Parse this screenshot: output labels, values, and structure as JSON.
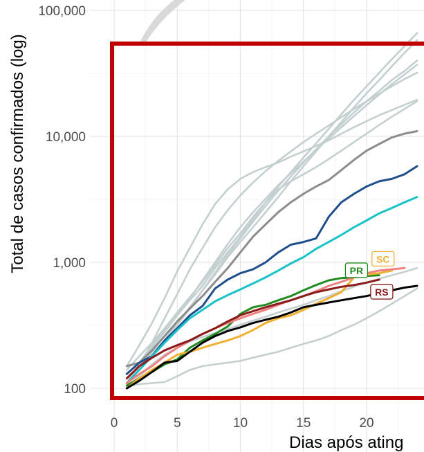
{
  "chart_data": {
    "type": "line",
    "title": "",
    "xlabel": "Dias após ating",
    "ylabel": "Total de casos confirmados (log)",
    "y_scale": "log",
    "xlim": [
      -1,
      24
    ],
    "ylim": [
      80,
      120000
    ],
    "x_ticks": [
      0,
      5,
      10,
      15,
      20
    ],
    "x_tick_labels": [
      "0",
      "5",
      "10",
      "15",
      "20"
    ],
    "y_ticks": [
      100,
      1000,
      10000,
      100000
    ],
    "y_tick_labels": [
      "100",
      "1,000",
      "10,000",
      "100,000"
    ],
    "grid": true,
    "legend": "none",
    "highlight_box_color": "#c00000",
    "series": [
      {
        "color": "#c4cfcf",
        "x": [
          1,
          2,
          3,
          4,
          5,
          6,
          7,
          8,
          9,
          10,
          11,
          12,
          13,
          14,
          15,
          16,
          17,
          18,
          19,
          20,
          21,
          22,
          23,
          24
        ],
        "values": [
          150,
          220,
          330,
          520,
          850,
          1300,
          2000,
          2900,
          3800,
          4600,
          5200,
          5700,
          6200,
          6900,
          7600,
          8400,
          9300,
          10500,
          11800,
          13200,
          14700,
          16200,
          17800,
          19500
        ]
      },
      {
        "color": "#c4cfcf",
        "x": [
          1,
          2,
          3,
          4,
          5,
          6,
          7,
          8,
          9,
          10,
          11,
          12,
          13,
          14,
          15,
          16,
          17,
          18,
          19,
          20,
          21,
          22,
          23,
          24
        ],
        "values": [
          105,
          150,
          230,
          360,
          560,
          880,
          1300,
          1900,
          2600,
          3400,
          4300,
          5300,
          6400,
          7600,
          9000,
          10500,
          12200,
          14200,
          16500,
          19000,
          21800,
          25000,
          28500,
          32000
        ]
      },
      {
        "color": "#c4cfcf",
        "x": [
          1,
          2,
          3,
          4,
          5,
          6,
          7,
          8,
          9,
          10,
          11,
          12,
          13,
          14,
          15,
          16,
          17,
          18,
          19,
          20,
          21,
          22,
          23,
          24
        ],
        "values": [
          110,
          150,
          210,
          280,
          380,
          520,
          720,
          1000,
          1400,
          1900,
          2500,
          3200,
          4100,
          5100,
          6300,
          7800,
          9600,
          11800,
          14500,
          17700,
          21500,
          26000,
          31000,
          37000
        ]
      },
      {
        "color": "#c4cfcf",
        "x": [
          1,
          2,
          3,
          4,
          5,
          6,
          7,
          8,
          9,
          10,
          11,
          12,
          13,
          14,
          15,
          16,
          17,
          18,
          19,
          20,
          21,
          22,
          23,
          24
        ],
        "values": [
          120,
          150,
          190,
          240,
          330,
          440,
          600,
          800,
          1100,
          1450,
          1900,
          2500,
          3300,
          4400,
          5800,
          7600,
          10000,
          13000,
          17000,
          22000,
          28000,
          36000,
          46000,
          58000
        ]
      },
      {
        "color": "#c4cfcf",
        "x": [
          1,
          2,
          3,
          4,
          5,
          6,
          7,
          8,
          9,
          10,
          11,
          12,
          13,
          14,
          15,
          16,
          17,
          18,
          19,
          20,
          21,
          22,
          23,
          24
        ],
        "values": [
          140,
          180,
          230,
          300,
          400,
          530,
          700,
          950,
          1300,
          1700,
          2300,
          3000,
          4000,
          5200,
          6800,
          8800,
          11500,
          15000,
          19500,
          25000,
          32000,
          41000,
          52000,
          66000
        ]
      },
      {
        "color": "#c4cfcf",
        "x": [
          1,
          2,
          3,
          4,
          5,
          6,
          7,
          8,
          9,
          10,
          11,
          12,
          13,
          14,
          15,
          16,
          17,
          18,
          19,
          20,
          21,
          22,
          23,
          24
        ],
        "values": [
          110,
          140,
          180,
          240,
          320,
          430,
          600,
          830,
          1150,
          1550,
          2100,
          2800,
          3700,
          4800,
          6200,
          7900,
          10000,
          12500,
          15500,
          19000,
          23000,
          28000,
          33000,
          40000
        ]
      },
      {
        "color": "#c4cfcf",
        "x": [
          1,
          2,
          3,
          4,
          5,
          6,
          7,
          8,
          9,
          10,
          11,
          12,
          13,
          14,
          15,
          16,
          17,
          18,
          19,
          20,
          21,
          22,
          23,
          24
        ],
        "values": [
          105,
          108,
          110,
          112,
          125,
          140,
          150,
          155,
          160,
          165,
          175,
          185,
          195,
          210,
          225,
          240,
          260,
          290,
          320,
          360,
          410,
          470,
          540,
          620
        ]
      },
      {
        "color": "#c4cfcf",
        "x": [
          1,
          2,
          3,
          4,
          5,
          6,
          7,
          8,
          9,
          10,
          11,
          12,
          13,
          14,
          15,
          16,
          17,
          18,
          19,
          20,
          21,
          22,
          23,
          24
        ],
        "values": [
          100,
          125,
          155,
          185,
          210,
          235,
          255,
          275,
          295,
          320,
          345,
          370,
          400,
          430,
          460,
          500,
          540,
          590,
          640,
          690,
          740,
          790,
          840,
          900
        ]
      },
      {
        "color": "#c4cfcf",
        "x": [
          1,
          2,
          3,
          4,
          5,
          6,
          7,
          8,
          9,
          10,
          11,
          12,
          13,
          14,
          15,
          16,
          17,
          18,
          19,
          20,
          21,
          22,
          23,
          24
        ],
        "values": [
          110,
          160,
          220,
          290,
          380,
          500,
          650,
          900,
          1200,
          1600,
          2200,
          3000,
          3800,
          4400,
          5000,
          5700,
          6600,
          7700,
          9000,
          10500,
          12300,
          14300,
          16500,
          19000
        ]
      },
      {
        "name": "",
        "color": "#8c8c8c",
        "x": [
          1,
          2,
          3,
          4,
          5,
          6,
          7,
          8,
          9,
          10,
          11,
          12,
          13,
          14,
          15,
          16,
          17,
          18,
          19,
          20,
          21,
          22,
          23,
          24
        ],
        "values": [
          150,
          160,
          200,
          260,
          340,
          430,
          540,
          700,
          900,
          1200,
          1600,
          2000,
          2500,
          3000,
          3500,
          4000,
          4500,
          5400,
          6500,
          7700,
          8700,
          9800,
          10500,
          11000
        ]
      },
      {
        "name": "",
        "color": "#1f4e8c",
        "x": [
          1,
          2,
          3,
          4,
          5,
          6,
          7,
          8,
          9,
          10,
          11,
          12,
          13,
          14,
          15,
          16,
          17,
          18,
          19,
          20,
          21,
          22,
          23,
          24
        ],
        "values": [
          130,
          160,
          180,
          240,
          300,
          380,
          450,
          620,
          730,
          820,
          880,
          1000,
          1200,
          1380,
          1450,
          1550,
          2300,
          3000,
          3500,
          4000,
          4400,
          4600,
          5000,
          5800
        ]
      },
      {
        "name": "",
        "color": "#17c3c8",
        "x": [
          1,
          2,
          3,
          4,
          5,
          6,
          7,
          8,
          9,
          10,
          11,
          12,
          13,
          14,
          15,
          16,
          17,
          18,
          19,
          20,
          21,
          22,
          23,
          24
        ],
        "values": [
          110,
          140,
          180,
          230,
          290,
          360,
          420,
          490,
          550,
          610,
          680,
          760,
          860,
          980,
          1100,
          1280,
          1450,
          1650,
          1900,
          2150,
          2450,
          2700,
          3000,
          3300
        ]
      },
      {
        "name": "PR",
        "color": "#228b22",
        "x": [
          1,
          2,
          3,
          4,
          5,
          6,
          7,
          8,
          9,
          10,
          11,
          12,
          13,
          14,
          15,
          16,
          17,
          18,
          19,
          20,
          21
        ],
        "values": [
          105,
          120,
          135,
          155,
          170,
          210,
          240,
          270,
          310,
          390,
          440,
          460,
          500,
          540,
          600,
          660,
          720,
          750,
          760,
          780,
          790
        ]
      },
      {
        "name": "SC",
        "color": "#f0b030",
        "x": [
          1,
          2,
          3,
          4,
          5,
          6,
          7,
          8,
          9,
          10,
          11,
          12,
          13,
          14,
          15,
          16,
          17,
          18,
          19,
          20,
          21,
          22
        ],
        "values": [
          100,
          120,
          140,
          160,
          185,
          195,
          210,
          225,
          240,
          260,
          290,
          330,
          360,
          380,
          420,
          470,
          520,
          580,
          760,
          800,
          820,
          860
        ]
      },
      {
        "name": "",
        "color": "#f08080",
        "x": [
          1,
          2,
          3,
          4,
          5,
          6,
          7,
          8,
          9,
          10,
          11,
          12,
          13,
          14,
          15,
          16,
          17,
          18,
          19,
          20,
          21,
          22,
          23
        ],
        "values": [
          110,
          130,
          150,
          180,
          210,
          240,
          270,
          300,
          330,
          360,
          390,
          420,
          460,
          500,
          540,
          590,
          650,
          700,
          760,
          820,
          860,
          880,
          900
        ]
      },
      {
        "name": "RS",
        "color": "#8b1a1a",
        "x": [
          1,
          2,
          3,
          4,
          5,
          6,
          7,
          8,
          9,
          10,
          11,
          12,
          13,
          14,
          15,
          16,
          17,
          18,
          19,
          20,
          21
        ],
        "values": [
          120,
          150,
          175,
          200,
          220,
          240,
          270,
          300,
          340,
          380,
          410,
          440,
          470,
          500,
          540,
          580,
          610,
          640,
          660,
          690,
          730
        ]
      },
      {
        "name": "",
        "color": "#000000",
        "x": [
          1,
          2,
          3,
          4,
          5,
          6,
          7,
          8,
          9,
          10,
          11,
          12,
          13,
          14,
          15,
          16,
          17,
          18,
          19,
          20,
          21,
          22,
          23,
          24
        ],
        "values": [
          100,
          115,
          135,
          160,
          165,
          195,
          230,
          260,
          285,
          305,
          330,
          350,
          370,
          400,
          440,
          460,
          480,
          500,
          520,
          540,
          570,
          600,
          630,
          650
        ]
      }
    ],
    "labels": [
      {
        "text": "PR",
        "color": "#228b22",
        "x": 19.2,
        "y": 860
      },
      {
        "text": "SC",
        "color": "#f0b030",
        "x": 21.3,
        "y": 1060
      },
      {
        "text": "RS",
        "color": "#8b1a1a",
        "x": 21.2,
        "y": 580
      }
    ]
  }
}
